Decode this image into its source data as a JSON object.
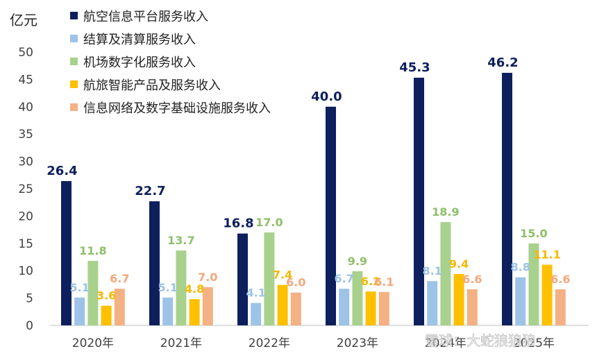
{
  "chart_data": {
    "type": "bar",
    "ylabel": "亿元",
    "ylim": [
      0,
      50
    ],
    "yticks": [
      0,
      5,
      10,
      15,
      20,
      25,
      30,
      35,
      40,
      45,
      50
    ],
    "grid": false,
    "legend_position": "top-left",
    "categories": [
      "2020年",
      "2021年",
      "2022年",
      "2023年",
      "2024年",
      "2025年"
    ],
    "series": [
      {
        "name": "航空信息平台服务收入",
        "color": "#0d1f5c",
        "label_color": "#0d1f5c",
        "values": [
          26.4,
          22.7,
          16.8,
          40.0,
          45.3,
          46.2
        ],
        "labels": [
          "26.4",
          "22.7",
          "16.8",
          "40.0",
          "45.3",
          "46.2"
        ]
      },
      {
        "name": "结算及清算服务收入",
        "color": "#9dc3e6",
        "label_color": "#9dc3e6",
        "values": [
          5.1,
          5.1,
          4.1,
          6.7,
          8.1,
          8.8
        ],
        "labels": [
          "5.1",
          "5.1",
          "4.1",
          "6.7",
          "8.1",
          "8.8"
        ]
      },
      {
        "name": "机场数字化服务收入",
        "color": "#a9d18e",
        "label_color": "#8fbf6a",
        "values": [
          11.8,
          13.7,
          17.0,
          9.9,
          18.9,
          15.0
        ],
        "labels": [
          "11.8",
          "13.7",
          "17.0",
          "9.9",
          "18.9",
          "15.0"
        ]
      },
      {
        "name": "航旅智能产品及服务收入",
        "color": "#ffc000",
        "label_color": "#f5b800",
        "values": [
          3.6,
          4.8,
          7.4,
          6.2,
          9.4,
          11.1
        ],
        "labels": [
          "3.6",
          "4.8",
          "7.4",
          "6.2",
          "9.4",
          "11.1"
        ]
      },
      {
        "name": "信息网络及数字基础设施服务收入",
        "color": "#f4b183",
        "label_color": "#f4a77a",
        "values": [
          6.7,
          7.0,
          6.0,
          6.1,
          6.6,
          6.6
        ],
        "labels": [
          "6.7",
          "7.0",
          "6.0",
          "6.1",
          "6.6",
          "6.6"
        ]
      }
    ]
  },
  "watermark": "雪球：大蛇狼狼狼"
}
